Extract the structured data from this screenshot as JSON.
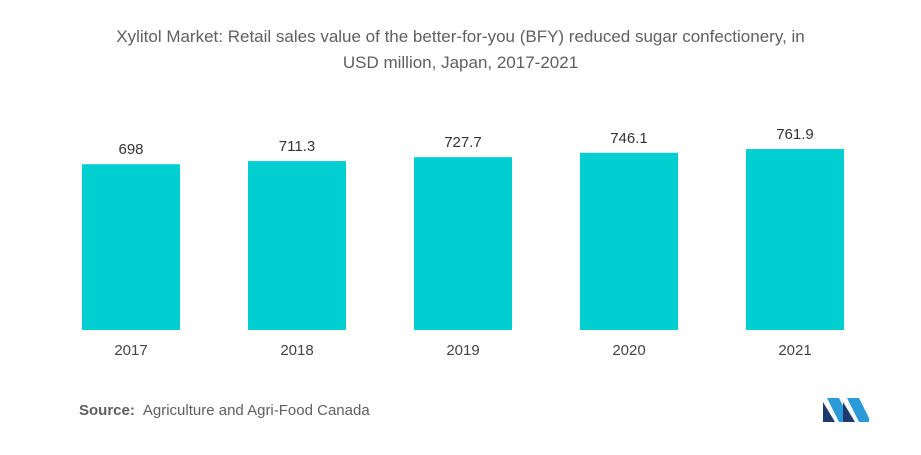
{
  "title_line1": "Xylitol Market: Retail sales value of the better-for-you (BFY) reduced sugar confectionery, in",
  "title_line2": "USD million, Japan, 2017-2021",
  "source": {
    "label": "Source:",
    "text": "Agriculture and Agri-Food Canada"
  },
  "colors": {
    "bar": "#00CED1",
    "text": "#5f5f5f"
  },
  "chart_data": {
    "type": "bar",
    "title": "Xylitol Market: Retail sales value of the better-for-you (BFY) reduced sugar confectionery, in USD million, Japan, 2017-2021",
    "categories": [
      "2017",
      "2018",
      "2019",
      "2020",
      "2021"
    ],
    "values": [
      698,
      711.3,
      727.7,
      746.1,
      761.9
    ],
    "value_labels": [
      "698",
      "711.3",
      "727.7",
      "746.1",
      "761.9"
    ],
    "xlabel": "",
    "ylabel": "",
    "ylim": [
      0,
      800
    ],
    "grid": false,
    "legend": "none"
  }
}
